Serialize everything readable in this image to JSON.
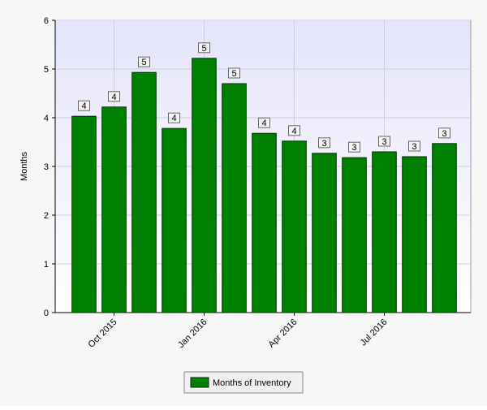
{
  "chart_data": {
    "type": "bar",
    "y_label": "Months",
    "categories": [
      null,
      "Oct 2015",
      null,
      null,
      "Jan 2016",
      null,
      null,
      "Apr 2016",
      null,
      null,
      "Jul 2016",
      null,
      null
    ],
    "series": [
      {
        "name": "Months of Inventory",
        "color": "#008000",
        "values": [
          4.03,
          4.22,
          4.93,
          3.78,
          5.22,
          4.7,
          3.68,
          3.52,
          3.27,
          3.18,
          3.3,
          3.2,
          3.47
        ],
        "value_labels": [
          "4",
          "4",
          "5",
          "4",
          "5",
          "5",
          "4",
          "4",
          "3",
          "3",
          "3",
          "3",
          "3"
        ]
      }
    ],
    "ylim": [
      0,
      6
    ],
    "yticks": [
      0,
      1,
      2,
      3,
      4,
      5,
      6
    ],
    "grid": true,
    "legend": "bottom"
  }
}
